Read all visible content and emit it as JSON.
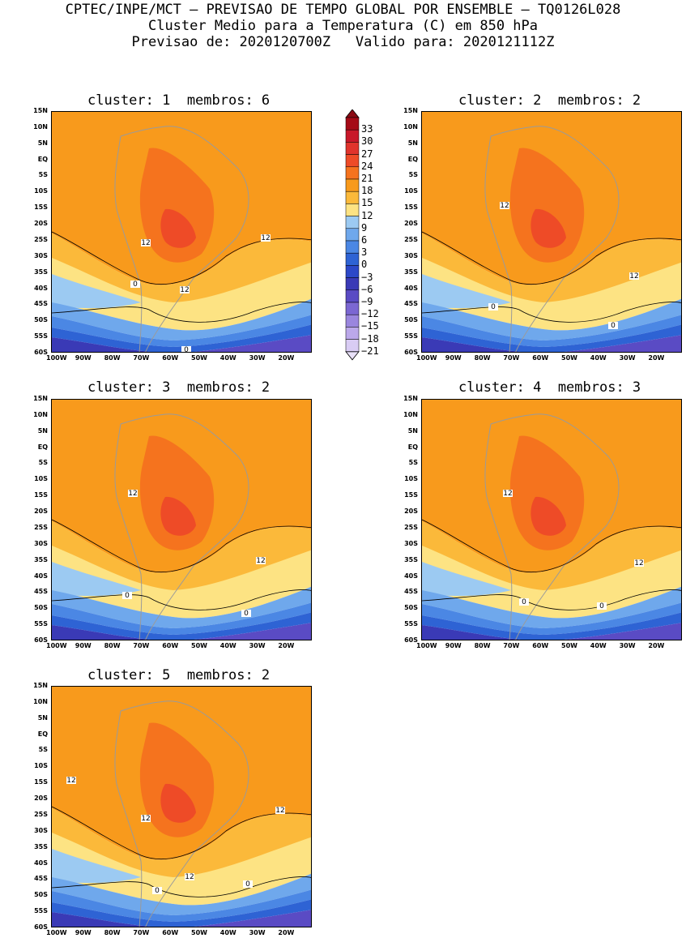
{
  "header": {
    "line1": "CPTEC/INPE/MCT — PREVISAO DE TEMPO GLOBAL POR ENSEMBLE — TQ0126L028",
    "line2": "Cluster Medio para a Temperatura (C) em 850 hPa",
    "line3": "Previsao de: 2020120700Z   Valido para: 2020121112Z"
  },
  "panels": [
    {
      "title": "cluster: 1  membros: 6",
      "labels": [
        [
          "12",
          "12",
          "12",
          "0",
          "0"
        ]
      ]
    },
    {
      "title": "cluster: 2  membros: 2"
    },
    {
      "title": "cluster: 3  membros: 2"
    },
    {
      "title": "cluster: 4  membros: 3"
    },
    {
      "title": "cluster: 5  membros: 2"
    }
  ],
  "lat_ticks": [
    "15N",
    "10N",
    "5N",
    "EQ",
    "5S",
    "10S",
    "15S",
    "20S",
    "25S",
    "30S",
    "35S",
    "40S",
    "45S",
    "50S",
    "55S",
    "60S"
  ],
  "lon_ticks": [
    "100W",
    "90W",
    "80W",
    "70W",
    "60W",
    "50W",
    "40W",
    "30W",
    "20W"
  ],
  "contour_labels": {
    "p1": [
      "12",
      "12",
      "12",
      "0",
      "0"
    ],
    "p2": [
      "12",
      "12",
      "0",
      "0"
    ],
    "p3": [
      "12",
      "12",
      "0",
      "0"
    ],
    "p4": [
      "12",
      "12",
      "0",
      "0"
    ],
    "p5": [
      "12",
      "12",
      "12",
      "12",
      "0",
      "0"
    ]
  },
  "colorbar": {
    "labels": [
      "33",
      "30",
      "27",
      "24",
      "21",
      "18",
      "15",
      "12",
      "9",
      "6",
      "3",
      "0",
      "−3",
      "−6",
      "−9",
      "−12",
      "−15",
      "−18",
      "−21"
    ],
    "colors": [
      "#a50a17",
      "#c8182a",
      "#e0332c",
      "#ee4b27",
      "#f5731e",
      "#f89a1c",
      "#fbb93a",
      "#fde383",
      "#9ccaf2",
      "#6fa8ec",
      "#4b87e4",
      "#2e63d4",
      "#2c48c8",
      "#3a3ab6",
      "#5a4bc4",
      "#7b67d2",
      "#9a86de",
      "#bba8ea",
      "#d9ccf4"
    ]
  }
}
